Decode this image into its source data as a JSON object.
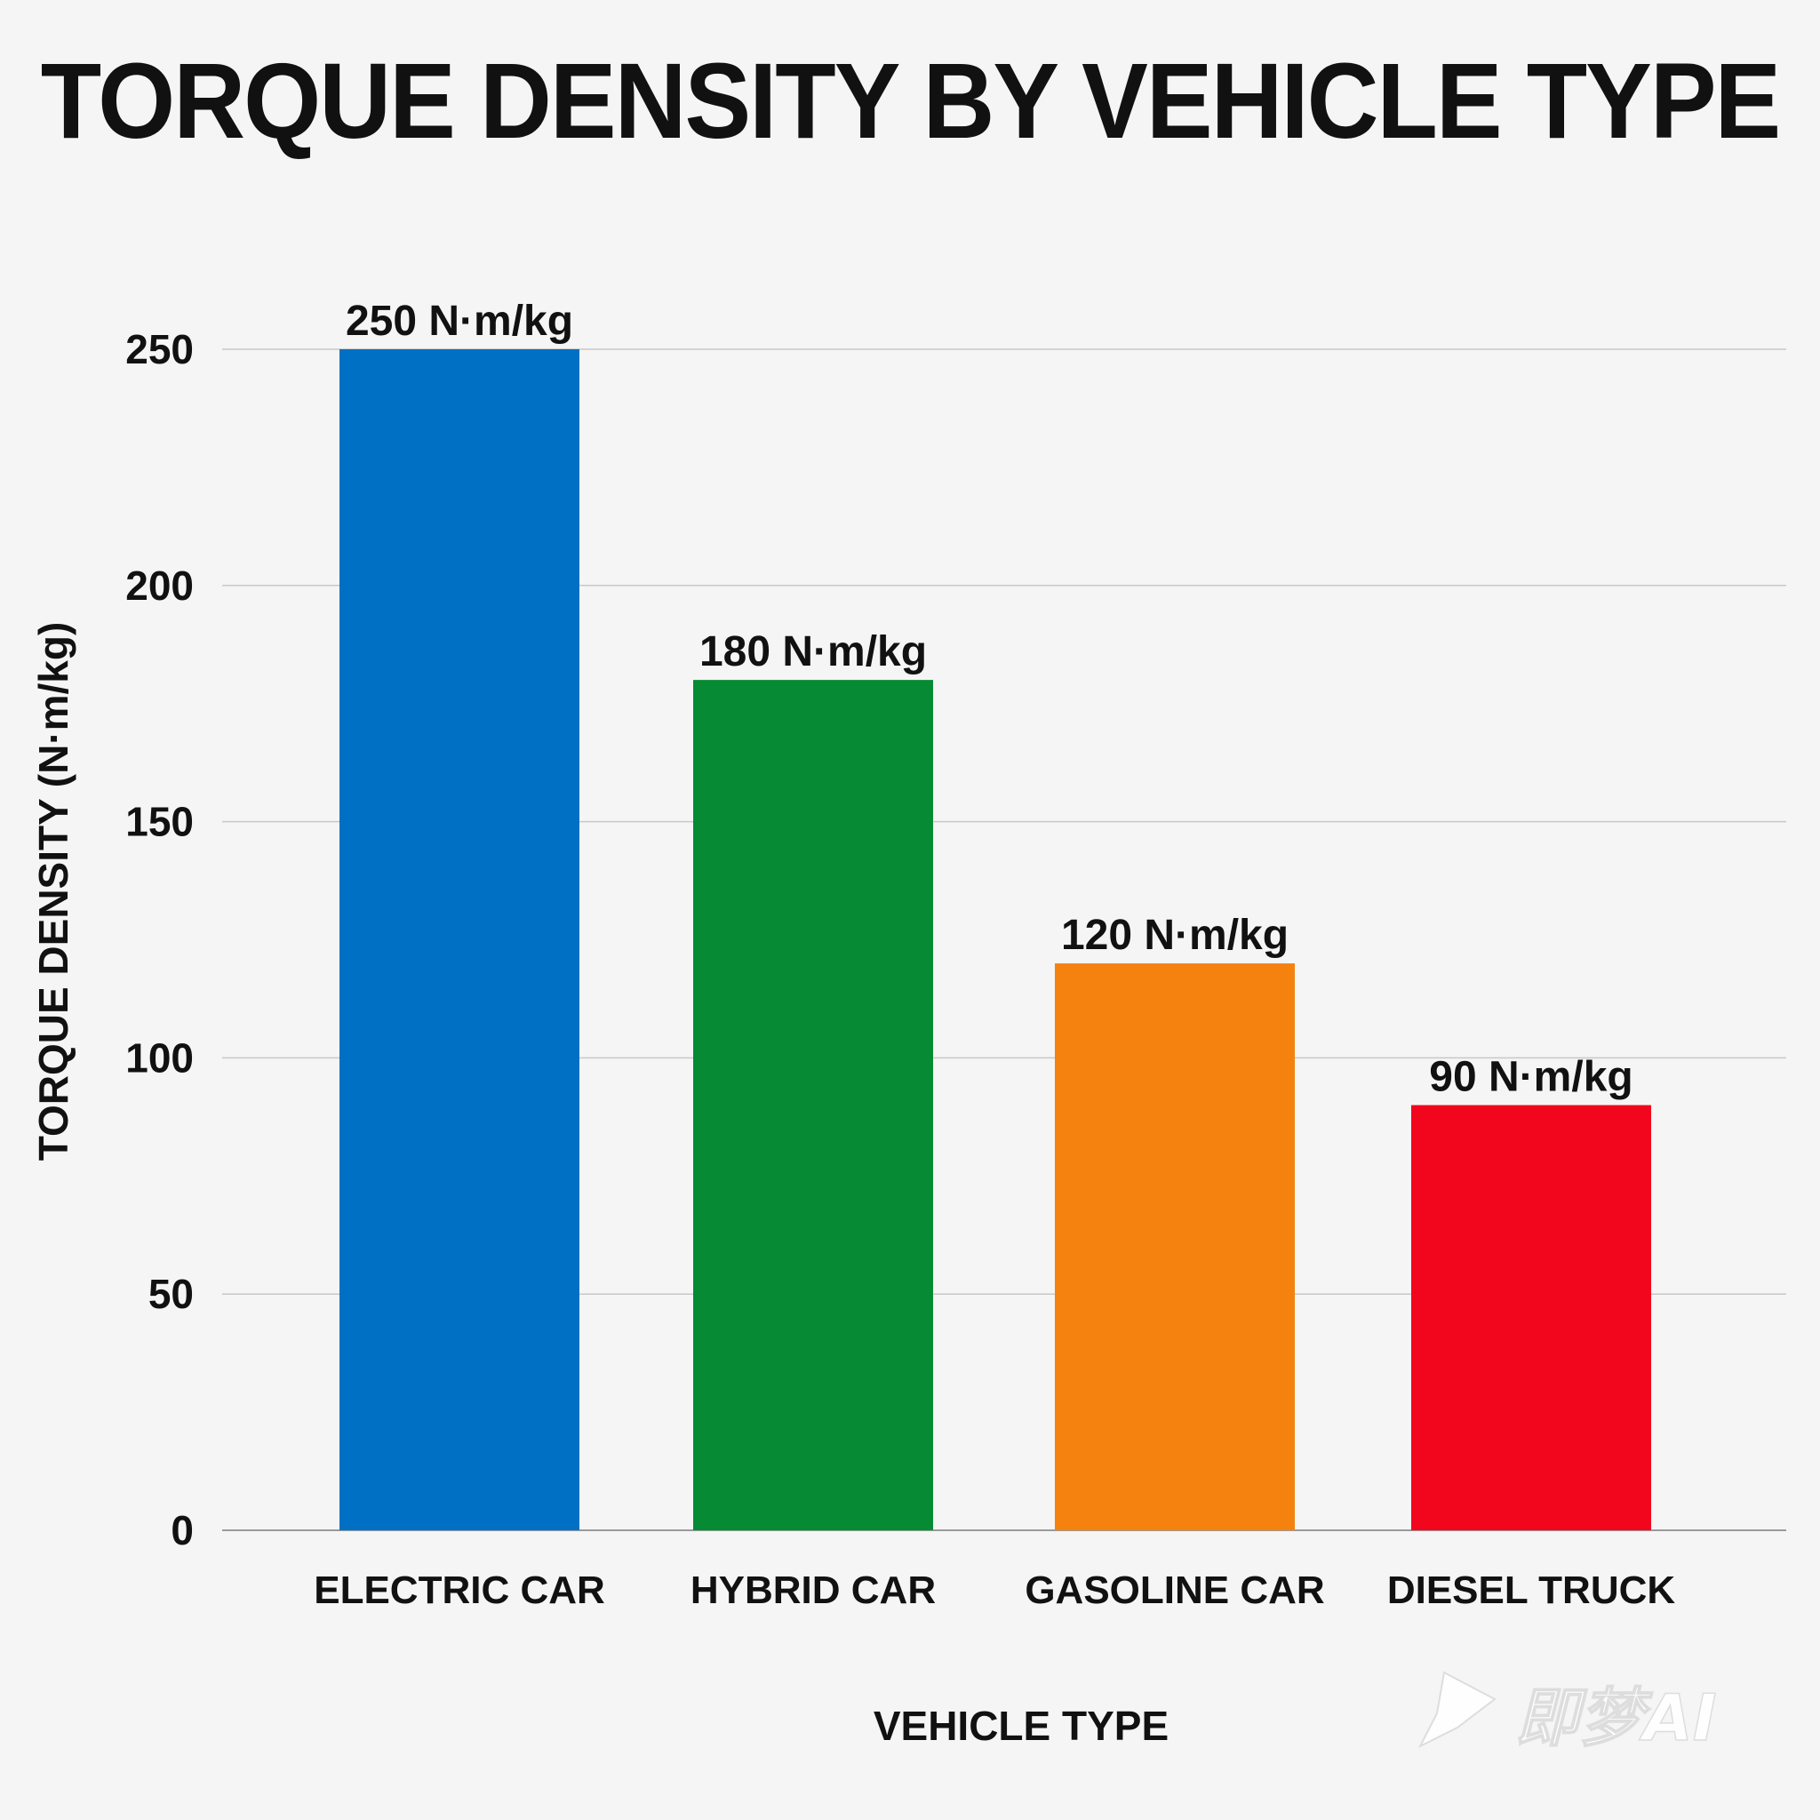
{
  "chart_data": {
    "type": "bar",
    "title": "TORQUE DENSITY BY VEHICLE TYPE",
    "xlabel": "VEHICLE TYPE",
    "ylabel": "TORQUE DENSITY (N·m/kg)",
    "ylim": [
      0,
      250
    ],
    "yticks": [
      0,
      50,
      100,
      150,
      200,
      250
    ],
    "grid": true,
    "categories": [
      "ELECTRIC CAR",
      "HYBRID CAR",
      "GASOLINE CAR",
      "DIESEL TRUCK"
    ],
    "values": [
      250,
      180,
      120,
      90
    ],
    "data_labels": [
      "250 N·m/kg",
      "180 N·m/kg",
      "120 N·m/kg",
      "90 N·m/kg"
    ],
    "colors": [
      "#0070c4",
      "#078a34",
      "#f5820f",
      "#f2061e"
    ]
  },
  "watermark": "即梦AI"
}
